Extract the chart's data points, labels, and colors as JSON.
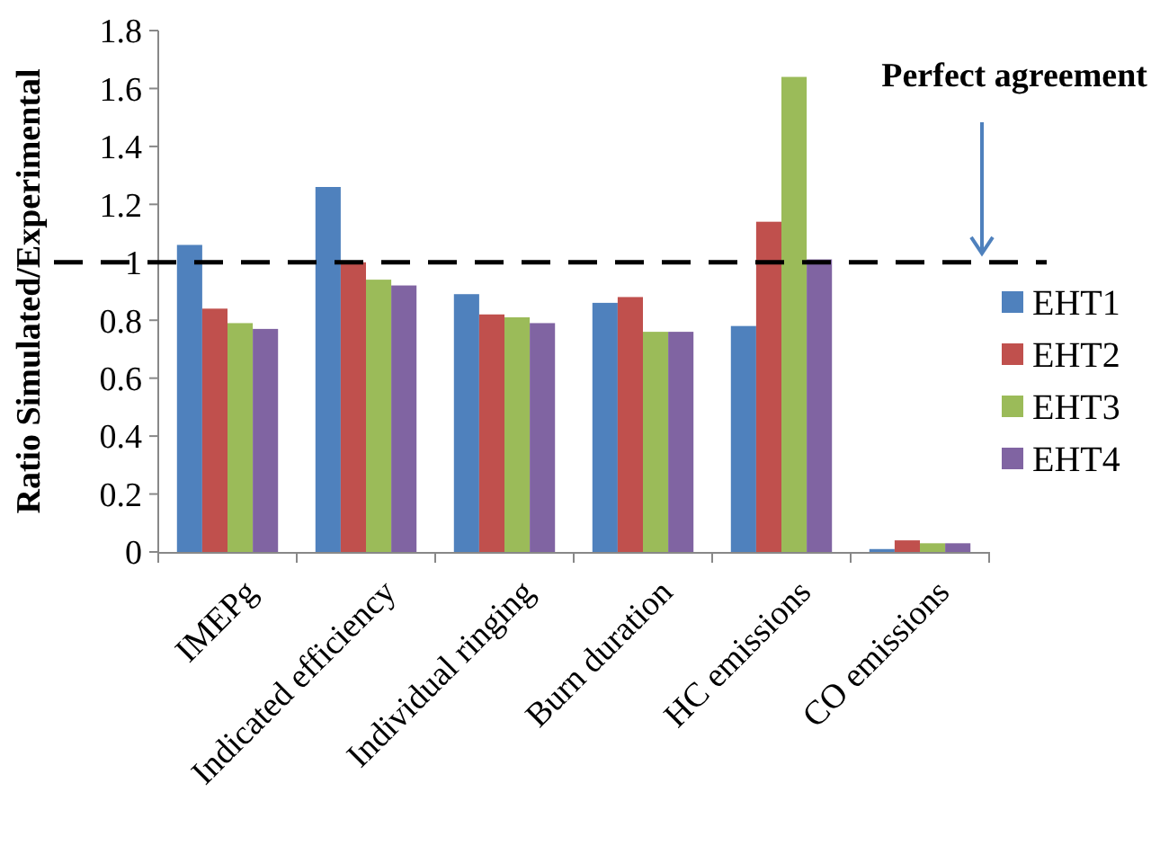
{
  "chart_data": {
    "type": "bar",
    "ylabel": "Ratio Simulated/Experimental",
    "categories": [
      "IMEPg",
      "Indicated efficiency",
      "Individual ringing",
      "Burn duration",
      "HC emissions",
      "CO emissions"
    ],
    "series": [
      {
        "name": "EHT1",
        "color": "#4f81bd",
        "values": [
          1.06,
          1.26,
          0.89,
          0.86,
          0.78,
          0.01
        ]
      },
      {
        "name": "EHT2",
        "color": "#c0504d",
        "values": [
          0.84,
          1.0,
          0.82,
          0.88,
          1.14,
          0.04
        ]
      },
      {
        "name": "EHT3",
        "color": "#9bbb59",
        "values": [
          0.79,
          0.94,
          0.81,
          0.76,
          1.64,
          0.03
        ]
      },
      {
        "name": "EHT4",
        "color": "#8064a2",
        "values": [
          0.77,
          0.92,
          0.79,
          0.76,
          1.01,
          0.03
        ]
      }
    ],
    "ylim": [
      0,
      1.8
    ],
    "yticks": [
      0,
      {
        "value": 0.2,
        "label": "0.2"
      },
      {
        "value": 0.4,
        "label": "0.4"
      },
      {
        "value": 0.6,
        "label": "0.6"
      },
      {
        "value": 0.8,
        "label": "0.8"
      },
      1,
      {
        "value": 1.2,
        "label": "1.2"
      },
      {
        "value": 1.4,
        "label": "1.4"
      },
      {
        "value": 1.6,
        "label": "1.6"
      },
      {
        "value": 1.8,
        "label": "1.8"
      }
    ],
    "ref_lines": [
      {
        "axis": "y",
        "value": 1,
        "label": "Perfect agreement",
        "color": "#000000",
        "line_style": "dashed"
      }
    ],
    "grid": false,
    "legend": "right"
  }
}
